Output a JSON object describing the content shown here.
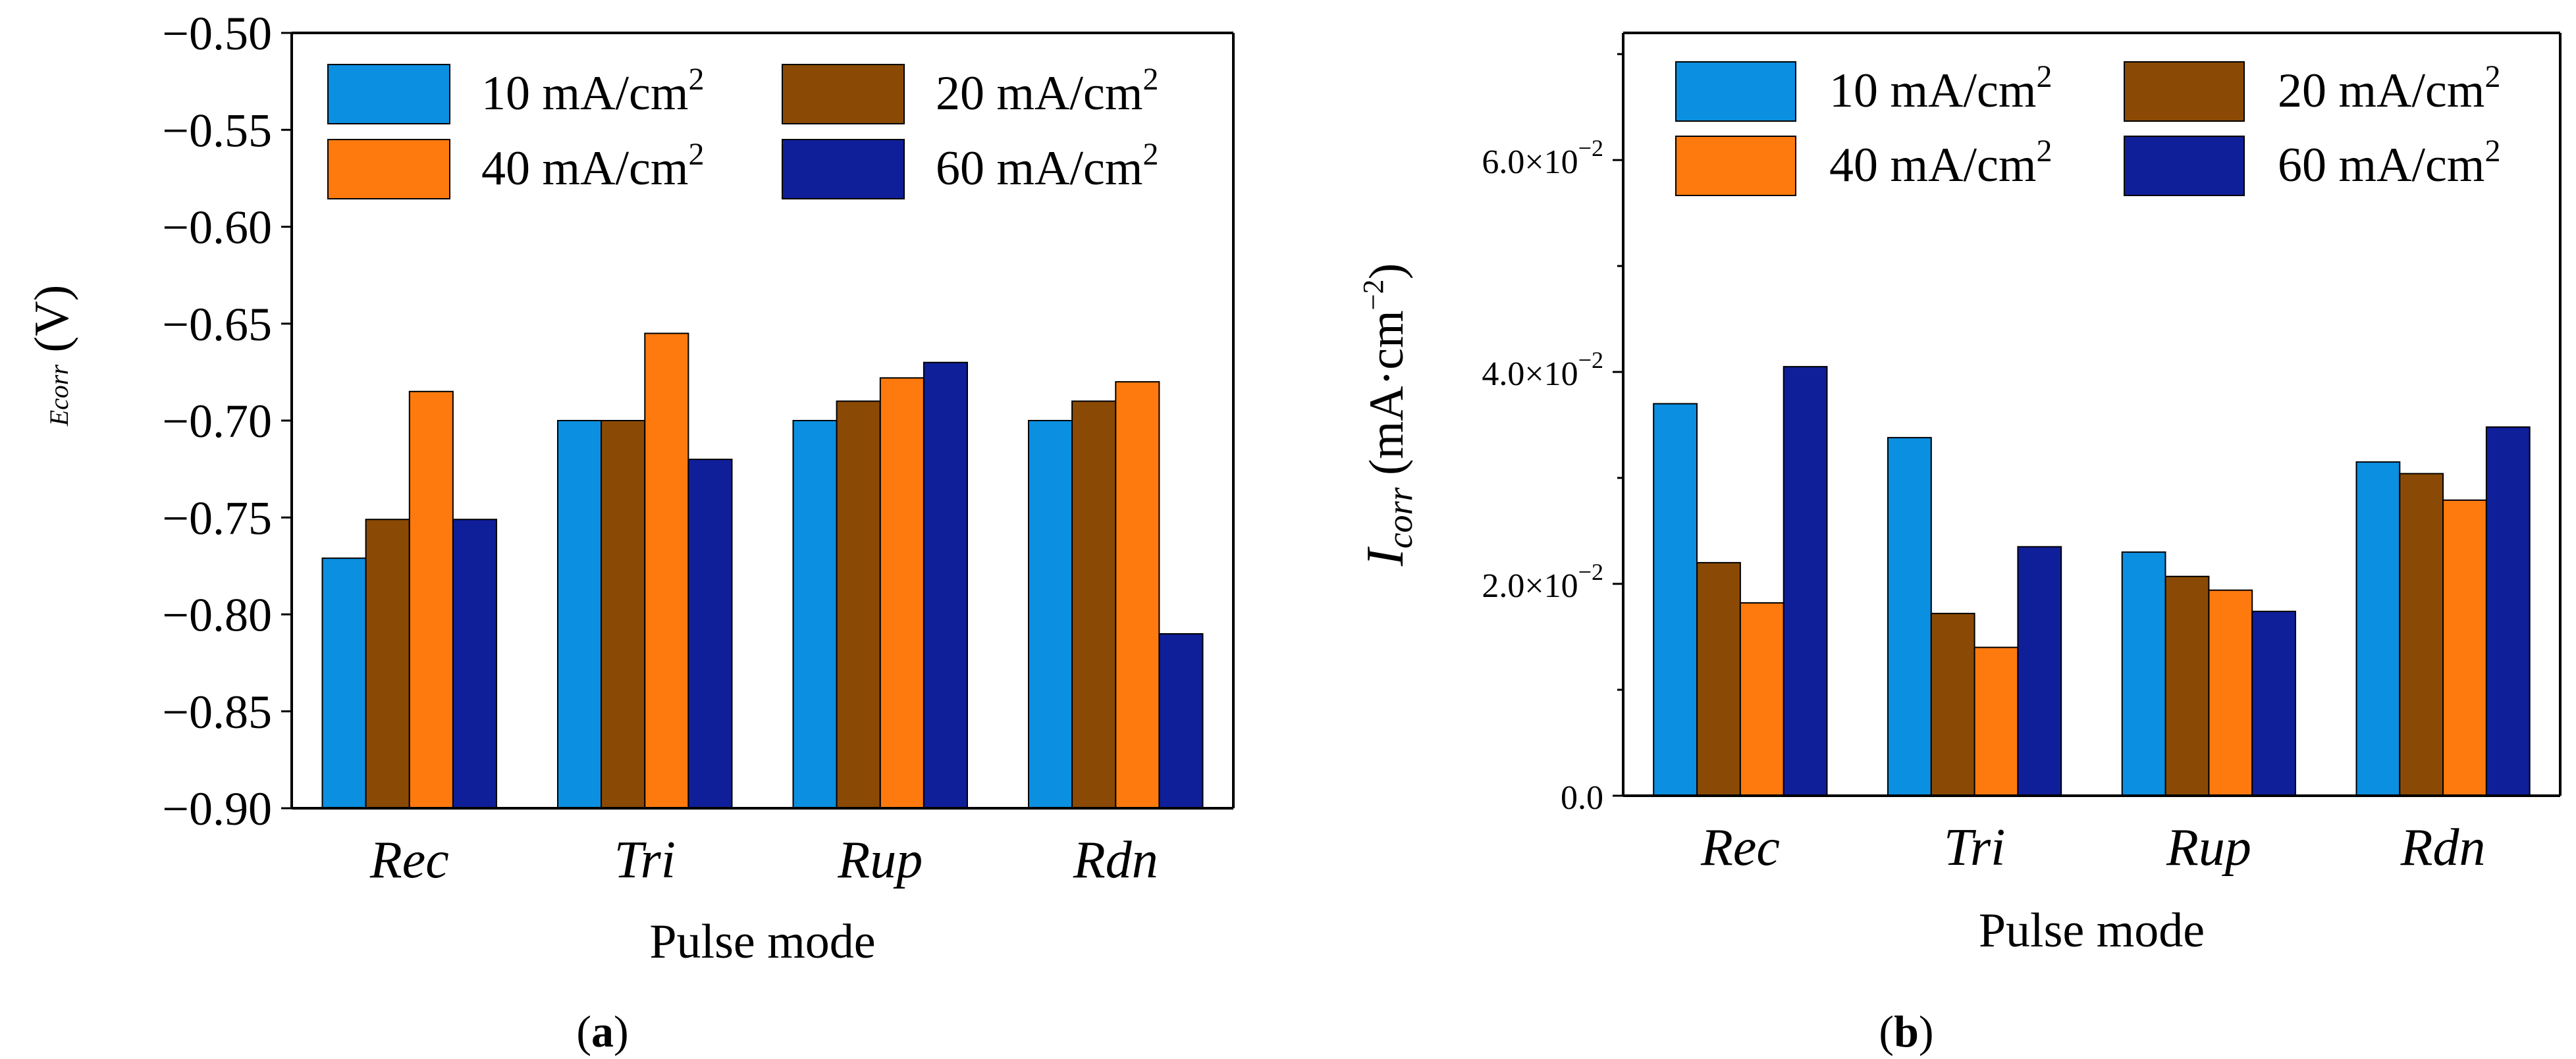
{
  "colors": {
    "s10": "#0b8fe0",
    "s20": "#8a4a05",
    "s40": "#ff7a0e",
    "s60": "#0f1f99"
  },
  "chart_data": [
    {
      "type": "bar",
      "panel": "a",
      "caption_letter": "a",
      "xlabel": "Pulse mode",
      "ylabel_sym": "E",
      "ylabel_sub": "corr",
      "ylabel_unit": " (V)",
      "categories": [
        "Rec",
        "Tri",
        "Rup",
        "Rdn"
      ],
      "ylim": [
        -0.9,
        -0.5
      ],
      "yticks": [
        -0.9,
        -0.85,
        -0.8,
        -0.75,
        -0.7,
        -0.65,
        -0.6,
        -0.55,
        -0.5
      ],
      "ytick_labels": [
        "−0.90",
        "−0.85",
        "−0.80",
        "−0.75",
        "−0.70",
        "−0.65",
        "−0.60",
        "−0.55",
        "−0.50"
      ],
      "series": [
        {
          "name": "10 mA/cm",
          "sup": "2",
          "color_key": "s10",
          "values": [
            -0.771,
            -0.7,
            -0.7,
            -0.7
          ]
        },
        {
          "name": "20 mA/cm",
          "sup": "2",
          "color_key": "s20",
          "values": [
            -0.751,
            -0.7,
            -0.69,
            -0.69
          ]
        },
        {
          "name": "40 mA/cm",
          "sup": "2",
          "color_key": "s40",
          "values": [
            -0.685,
            -0.655,
            -0.678,
            -0.68
          ]
        },
        {
          "name": "60 mA/cm",
          "sup": "2",
          "color_key": "s60",
          "values": [
            -0.751,
            -0.72,
            -0.67,
            -0.81
          ]
        }
      ]
    },
    {
      "type": "bar",
      "panel": "b",
      "caption_letter": "b",
      "xlabel": "Pulse mode",
      "ylabel_sym": "I",
      "ylabel_sub": "corr",
      "ylabel_unit_pre": " (mA·cm",
      "ylabel_unit_sup": "−2",
      "ylabel_unit_post": ")",
      "categories": [
        "Rec",
        "Tri",
        "Rup",
        "Rdn"
      ],
      "ylim": [
        0,
        0.072
      ],
      "yticks": [
        0,
        0.02,
        0.04,
        0.06
      ],
      "ytick_labels": [
        {
          "base": "0.0",
          "exp": ""
        },
        {
          "base": "2.0×10",
          "exp": "−2"
        },
        {
          "base": "4.0×10",
          "exp": "−2"
        },
        {
          "base": "6.0×10",
          "exp": "−2"
        }
      ],
      "minor_ticks": [
        0.01,
        0.03,
        0.05,
        0.07
      ],
      "series": [
        {
          "name": "10 mA/cm",
          "sup": "2",
          "color_key": "s10",
          "values": [
            0.037,
            0.0338,
            0.023,
            0.0315
          ]
        },
        {
          "name": "20 mA/cm",
          "sup": "2",
          "color_key": "s20",
          "values": [
            0.022,
            0.0172,
            0.0207,
            0.0304
          ]
        },
        {
          "name": "40 mA/cm",
          "sup": "2",
          "color_key": "s40",
          "values": [
            0.0182,
            0.014,
            0.0194,
            0.0279
          ]
        },
        {
          "name": "60 mA/cm",
          "sup": "2",
          "color_key": "s60",
          "values": [
            0.0405,
            0.0235,
            0.0174,
            0.0348
          ]
        }
      ]
    }
  ]
}
